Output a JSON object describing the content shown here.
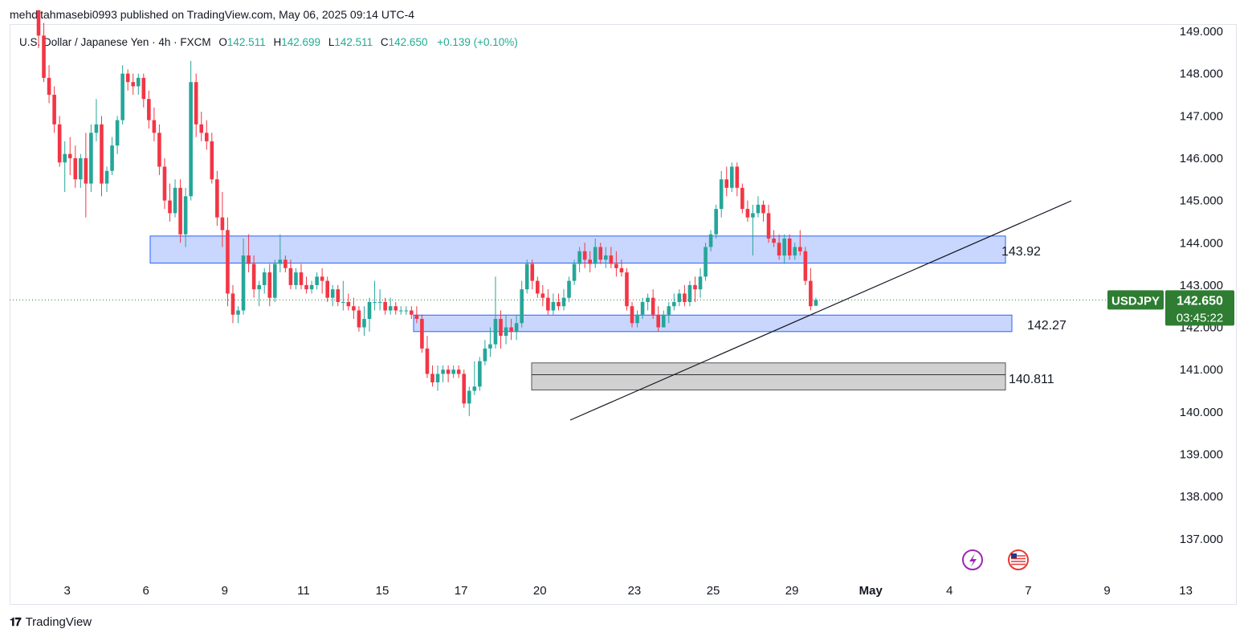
{
  "header": {
    "text": "mehditahmasebi0993 published on TradingView.com, May 06, 2025 09:14 UTC-4"
  },
  "legend": {
    "symbol": "U.S. Dollar / Japanese Yen · 4h · FXCM",
    "o_label": "O",
    "o": "142.511",
    "h_label": "H",
    "h": "142.699",
    "l_label": "L",
    "l": "142.511",
    "c_label": "C",
    "c": "142.650",
    "change": "+0.139 (+0.10%)"
  },
  "price_badge": {
    "ticker": "USDJPY",
    "price": "142.650",
    "countdown": "03:45:22"
  },
  "zones": {
    "upper_label": "143.92",
    "middle_label": "142.27",
    "lower_label": "140.811"
  },
  "footer": {
    "brand": "TradingView"
  },
  "colors": {
    "up": "#22ab94",
    "down": "#f23645",
    "up_candle": "#26a69a",
    "zone_blue": "#c6d4fb",
    "zone_grey": "#d3d3d3",
    "badge_green": "#2e7d32"
  },
  "chart_data": {
    "type": "candlestick",
    "y_axis_ticks": [
      "149.000",
      "148.000",
      "147.000",
      "146.000",
      "145.000",
      "144.000",
      "143.000",
      "142.000",
      "141.000",
      "140.000",
      "139.000",
      "138.000",
      "137.000"
    ],
    "ylim": [
      136.3,
      149.4
    ],
    "x_axis_ticks": [
      {
        "label": "3",
        "bar": 3
      },
      {
        "label": "6",
        "bar": 18
      },
      {
        "label": "9",
        "bar": 33
      },
      {
        "label": "11",
        "bar": 48
      },
      {
        "label": "15",
        "bar": 63
      },
      {
        "label": "17",
        "bar": 78
      },
      {
        "label": "20",
        "bar": 93
      },
      {
        "label": "23",
        "bar": 111
      },
      {
        "label": "25",
        "bar": 126
      },
      {
        "label": "29",
        "bar": 141
      },
      {
        "label": "May",
        "bar": 156,
        "bold": true
      },
      {
        "label": "4",
        "bar": 171
      },
      {
        "label": "7",
        "bar": 186
      },
      {
        "label": "9",
        "bar": 201
      },
      {
        "label": "13",
        "bar": 216
      }
    ],
    "candles": [
      [
        149.5,
        149.5,
        148.6,
        148.9
      ],
      [
        148.9,
        149.2,
        147.8,
        147.9
      ],
      [
        147.9,
        148.2,
        147.3,
        147.5
      ],
      [
        147.5,
        147.7,
        146.6,
        146.8
      ],
      [
        146.8,
        147.0,
        145.8,
        145.9
      ],
      [
        145.9,
        146.4,
        145.2,
        146.1
      ],
      [
        146.1,
        146.5,
        145.6,
        146.0
      ],
      [
        146.0,
        146.3,
        145.3,
        145.5
      ],
      [
        145.5,
        146.1,
        145.3,
        146.0
      ],
      [
        146.0,
        146.6,
        144.6,
        145.4
      ],
      [
        145.4,
        146.8,
        145.2,
        146.6
      ],
      [
        146.6,
        147.4,
        146.4,
        146.8
      ],
      [
        146.8,
        147.0,
        145.1,
        145.4
      ],
      [
        145.4,
        145.8,
        145.2,
        145.7
      ],
      [
        145.7,
        146.5,
        145.6,
        146.3
      ],
      [
        146.3,
        147.0,
        146.1,
        146.9
      ],
      [
        146.9,
        148.2,
        146.8,
        148.0
      ],
      [
        148.0,
        148.1,
        147.6,
        147.8
      ],
      [
        147.8,
        148.0,
        147.5,
        147.7
      ],
      [
        147.7,
        148.0,
        147.5,
        147.9
      ],
      [
        147.9,
        148.0,
        147.2,
        147.4
      ],
      [
        147.4,
        147.6,
        146.7,
        146.9
      ],
      [
        146.9,
        147.2,
        146.4,
        146.6
      ],
      [
        146.6,
        146.8,
        145.6,
        145.8
      ],
      [
        145.8,
        146.0,
        144.8,
        145.0
      ],
      [
        145.0,
        145.4,
        144.5,
        144.7
      ],
      [
        144.7,
        145.5,
        144.6,
        145.3
      ],
      [
        145.3,
        145.5,
        144.0,
        144.2
      ],
      [
        144.2,
        145.3,
        143.9,
        145.1
      ],
      [
        145.1,
        148.3,
        145.0,
        147.8
      ],
      [
        147.8,
        148.0,
        146.5,
        146.8
      ],
      [
        146.8,
        147.1,
        146.4,
        146.6
      ],
      [
        146.6,
        146.9,
        146.2,
        146.4
      ],
      [
        146.4,
        146.6,
        145.4,
        145.5
      ],
      [
        145.5,
        145.7,
        144.4,
        144.6
      ],
      [
        144.6,
        145.2,
        143.9,
        144.3
      ],
      [
        144.3,
        144.6,
        142.5,
        142.8
      ],
      [
        142.8,
        143.0,
        142.1,
        142.3
      ],
      [
        142.3,
        142.5,
        142.1,
        142.4
      ],
      [
        142.4,
        144.1,
        142.3,
        143.7
      ],
      [
        143.7,
        144.2,
        143.3,
        143.5
      ],
      [
        143.5,
        143.7,
        142.7,
        142.9
      ],
      [
        142.9,
        143.1,
        142.5,
        143.0
      ],
      [
        143.0,
        143.4,
        142.8,
        143.3
      ],
      [
        143.3,
        143.5,
        142.5,
        142.7
      ],
      [
        142.7,
        143.6,
        142.6,
        143.5
      ],
      [
        143.5,
        144.2,
        143.3,
        143.6
      ],
      [
        143.6,
        143.7,
        143.3,
        143.4
      ],
      [
        143.4,
        143.6,
        142.9,
        143.0
      ],
      [
        143.0,
        143.4,
        142.9,
        143.3
      ],
      [
        143.3,
        143.5,
        142.9,
        143.0
      ],
      [
        143.0,
        143.2,
        142.8,
        142.9
      ],
      [
        142.9,
        143.1,
        142.8,
        143.0
      ],
      [
        143.0,
        143.3,
        142.9,
        143.2
      ],
      [
        143.2,
        143.4,
        142.8,
        143.1
      ],
      [
        143.1,
        143.2,
        142.6,
        142.7
      ],
      [
        142.7,
        143.0,
        142.5,
        142.9
      ],
      [
        142.9,
        143.0,
        142.5,
        142.6
      ],
      [
        142.6,
        143.1,
        142.4,
        142.6
      ],
      [
        142.6,
        142.8,
        142.4,
        142.5
      ],
      [
        142.5,
        142.7,
        142.2,
        142.4
      ],
      [
        142.4,
        142.5,
        141.9,
        142.0
      ],
      [
        142.0,
        142.5,
        141.8,
        142.2
      ],
      [
        142.2,
        142.7,
        141.9,
        142.6
      ],
      [
        142.6,
        143.1,
        142.4,
        142.6
      ],
      [
        142.6,
        142.9,
        142.4,
        142.6
      ],
      [
        142.6,
        142.7,
        142.3,
        142.4
      ],
      [
        142.4,
        142.7,
        142.3,
        142.5
      ],
      [
        142.5,
        142.6,
        142.3,
        142.4
      ],
      [
        142.4,
        142.5,
        142.3,
        142.4
      ],
      [
        142.4,
        142.5,
        142.3,
        142.4
      ],
      [
        142.4,
        142.5,
        142.2,
        142.3
      ],
      [
        142.3,
        142.5,
        142.1,
        142.2
      ],
      [
        142.2,
        142.3,
        141.4,
        141.5
      ],
      [
        141.5,
        141.8,
        140.8,
        140.9
      ],
      [
        140.9,
        141.1,
        140.6,
        140.7
      ],
      [
        140.7,
        141.1,
        140.5,
        140.9
      ],
      [
        140.9,
        141.1,
        140.7,
        141.0
      ],
      [
        141.0,
        141.1,
        140.7,
        140.9
      ],
      [
        140.9,
        141.1,
        140.8,
        141.0
      ],
      [
        141.0,
        141.1,
        140.8,
        140.9
      ],
      [
        140.9,
        141.0,
        140.1,
        140.2
      ],
      [
        140.2,
        140.6,
        139.9,
        140.5
      ],
      [
        140.5,
        141.2,
        140.4,
        140.6
      ],
      [
        140.6,
        141.3,
        140.5,
        141.2
      ],
      [
        141.2,
        141.7,
        141.1,
        141.5
      ],
      [
        141.5,
        142.0,
        141.3,
        141.6
      ],
      [
        141.6,
        143.2,
        141.5,
        142.2
      ],
      [
        142.2,
        142.4,
        141.5,
        141.8
      ],
      [
        141.8,
        142.3,
        141.6,
        142.0
      ],
      [
        142.0,
        142.2,
        141.7,
        141.9
      ],
      [
        141.9,
        142.3,
        141.7,
        142.1
      ],
      [
        142.1,
        143.1,
        142.0,
        142.9
      ],
      [
        142.9,
        143.6,
        142.8,
        143.5
      ],
      [
        143.5,
        143.6,
        142.9,
        143.1
      ],
      [
        143.1,
        143.2,
        142.7,
        142.8
      ],
      [
        142.8,
        143.0,
        142.5,
        142.7
      ],
      [
        142.7,
        142.9,
        142.3,
        142.4
      ],
      [
        142.4,
        142.8,
        142.3,
        142.6
      ],
      [
        142.6,
        142.8,
        142.4,
        142.5
      ],
      [
        142.5,
        142.9,
        142.4,
        142.7
      ],
      [
        142.7,
        143.2,
        142.6,
        143.1
      ],
      [
        143.1,
        143.6,
        143.0,
        143.5
      ],
      [
        143.5,
        143.9,
        143.3,
        143.8
      ],
      [
        143.8,
        144.0,
        143.4,
        143.6
      ],
      [
        143.6,
        143.8,
        143.3,
        143.5
      ],
      [
        143.5,
        144.1,
        143.4,
        143.9
      ],
      [
        143.9,
        144.0,
        143.5,
        143.6
      ],
      [
        143.6,
        143.9,
        143.4,
        143.7
      ],
      [
        143.7,
        143.9,
        143.4,
        143.5
      ],
      [
        143.5,
        143.8,
        143.2,
        143.4
      ],
      [
        143.4,
        143.6,
        143.2,
        143.3
      ],
      [
        143.3,
        143.4,
        142.4,
        142.5
      ],
      [
        142.5,
        142.6,
        142.0,
        142.1
      ],
      [
        142.1,
        142.4,
        142.0,
        142.3
      ],
      [
        142.3,
        142.7,
        142.2,
        142.6
      ],
      [
        142.6,
        142.8,
        142.4,
        142.7
      ],
      [
        142.7,
        142.9,
        142.2,
        142.3
      ],
      [
        142.3,
        142.5,
        141.9,
        142.0
      ],
      [
        142.0,
        142.4,
        142.0,
        142.3
      ],
      [
        142.3,
        142.6,
        142.1,
        142.5
      ],
      [
        142.5,
        142.8,
        142.4,
        142.6
      ],
      [
        142.6,
        142.9,
        142.5,
        142.8
      ],
      [
        142.8,
        143.0,
        142.5,
        142.6
      ],
      [
        142.6,
        143.1,
        142.5,
        143.0
      ],
      [
        143.0,
        143.2,
        142.6,
        142.9
      ],
      [
        142.9,
        143.4,
        142.7,
        143.2
      ],
      [
        143.2,
        144.0,
        143.1,
        143.9
      ],
      [
        143.9,
        144.3,
        143.8,
        144.2
      ],
      [
        144.2,
        144.9,
        144.1,
        144.8
      ],
      [
        144.8,
        145.7,
        144.6,
        145.5
      ],
      [
        145.5,
        145.8,
        145.1,
        145.3
      ],
      [
        145.3,
        145.9,
        145.2,
        145.8
      ],
      [
        145.8,
        145.9,
        145.1,
        145.3
      ],
      [
        145.3,
        145.4,
        144.7,
        144.8
      ],
      [
        144.8,
        145.0,
        144.5,
        144.6
      ],
      [
        144.6,
        144.9,
        143.7,
        144.7
      ],
      [
        144.7,
        145.1,
        144.6,
        144.9
      ],
      [
        144.9,
        145.0,
        144.5,
        144.7
      ],
      [
        144.7,
        144.9,
        144.0,
        144.1
      ],
      [
        144.1,
        144.3,
        143.9,
        144.0
      ],
      [
        144.0,
        144.2,
        143.6,
        143.7
      ],
      [
        143.7,
        144.2,
        143.5,
        144.1
      ],
      [
        144.1,
        144.2,
        143.6,
        143.7
      ],
      [
        143.7,
        144.0,
        143.6,
        143.9
      ],
      [
        143.9,
        144.3,
        143.7,
        143.8
      ],
      [
        143.8,
        143.9,
        143.0,
        143.1
      ],
      [
        143.1,
        143.4,
        142.4,
        142.5
      ],
      [
        142.511,
        142.699,
        142.511,
        142.65
      ]
    ]
  }
}
